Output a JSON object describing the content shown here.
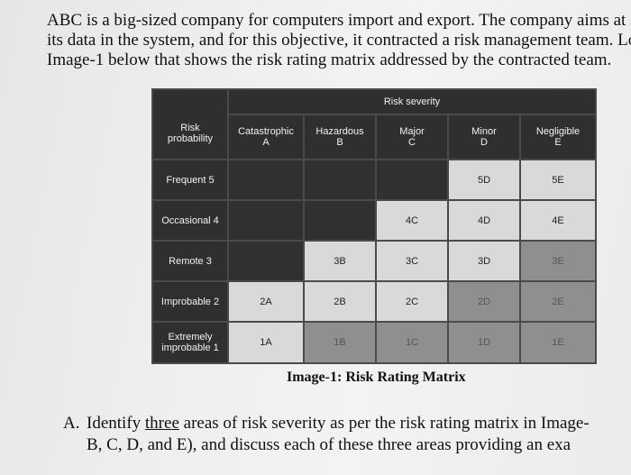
{
  "intro": {
    "line1": "ABC is a big-sized company for computers import and export. The company aims at sec",
    "line2": "its data in the system, and for this objective, it contracted a risk management team. Loo",
    "line3": "Image-1 below that shows the risk rating matrix addressed by the contracted team."
  },
  "matrix": {
    "severity_title": "Risk severity",
    "probability_title_line1": "Risk",
    "probability_title_line2": "probability",
    "columns": [
      {
        "name": "Catastrophic",
        "code": "A"
      },
      {
        "name": "Hazardous",
        "code": "B"
      },
      {
        "name": "Major",
        "code": "C"
      },
      {
        "name": "Minor",
        "code": "D"
      },
      {
        "name": "Negligible",
        "code": "E"
      }
    ],
    "rows": [
      {
        "label": "Frequent 5",
        "cells": [
          "",
          "",
          "",
          "5D",
          "5E"
        ]
      },
      {
        "label": "Occasional 4",
        "cells": [
          "",
          "",
          "4C",
          "4D",
          "4E"
        ]
      },
      {
        "label": "Remote 3",
        "cells": [
          "",
          "3B",
          "3C",
          "3D",
          "3E"
        ]
      },
      {
        "label": "Improbable 2",
        "cells": [
          "2A",
          "2B",
          "2C",
          "2D",
          "2E"
        ]
      },
      {
        "label_line1": "Extremely",
        "label_line2": "improbable 1",
        "cells": [
          "1A",
          "1B",
          "1C",
          "1D",
          "1E"
        ]
      }
    ]
  },
  "caption": "Image-1: Risk Rating Matrix",
  "question": {
    "number": "A.",
    "line1_pre": "Identify ",
    "line1_underlined": "three",
    "line1_post": " areas of risk severity as per the risk rating matrix in Image-",
    "line2": "B, C, D, and E), and discuss each of these three areas providing an exa"
  },
  "colors": {
    "dark_cell": "#303032",
    "light_cell": "#d9d9d9",
    "medium_cell": "#8f8f8f"
  }
}
